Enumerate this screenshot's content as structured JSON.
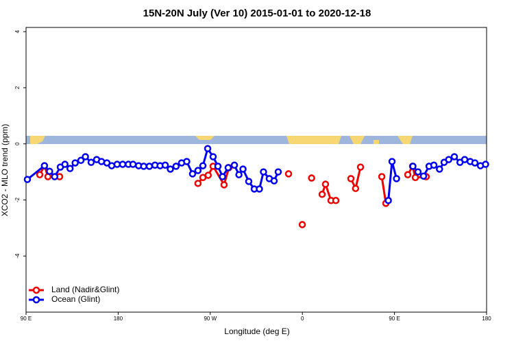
{
  "chart_data": {
    "type": "line",
    "title": "15N-20N July (Ver 10)   2015-01-01 to 2020-12-18",
    "x_label": "Longitude (deg E)",
    "y_label": "XCO2 - MLO trend (ppm)",
    "xlim": [
      90,
      540
    ],
    "ylim": [
      -6,
      4.15
    ],
    "xticks": [
      {
        "value": 90,
        "label": "90 E"
      },
      180,
      {
        "value": 270,
        "label": "90 W"
      },
      {
        "value": 360,
        "label": "0"
      },
      {
        "value": 450,
        "label": "90 E"
      },
      {
        "value": 540,
        "label": "180"
      }
    ],
    "yticks": [
      -4,
      -2,
      0,
      2,
      4
    ],
    "legend": "bottom-left",
    "series": [
      {
        "name": "Land (Nadir&Glint)",
        "color": "#ee0000",
        "x": [
          103.4,
          108,
          111.4,
          122.8,
          null,
          258,
          262.8,
          268,
          272.8,
          283.5,
          288.2,
          null,
          346.5,
          null,
          359.9,
          null,
          369,
          null,
          379.3,
          382.6,
          388,
          392.7,
          null,
          407.4,
          412,
          416.8,
          null,
          437.6,
          441.6,
          null,
          463,
          467.7,
          470.4,
          481
        ],
        "values": [
          -1.1,
          -0.78,
          -1.17,
          -1.17,
          null,
          -1.41,
          -1.2,
          -1.12,
          -0.8,
          -1.46,
          -0.85,
          null,
          -1.07,
          null,
          -2.88,
          null,
          -1.22,
          null,
          -1.8,
          -1.44,
          -2.02,
          -2.02,
          null,
          -1.24,
          -1.59,
          -0.83,
          null,
          -1.17,
          -2.12,
          null,
          -1.1,
          -0.8,
          -1.2,
          -1.17
        ]
      },
      {
        "name": "Ocean (Glint)",
        "color": "#0000ee",
        "x": [
          91.3,
          108,
          113,
          118,
          123.5,
          128,
          133,
          138,
          143.6,
          148,
          153.6,
          159,
          163.7,
          169,
          173.7,
          179,
          184.4,
          190,
          194.5,
          200,
          205,
          210.5,
          216,
          221,
          226,
          231,
          236.6,
          242,
          247,
          252.7,
          258,
          262.8,
          267.5,
          272.8,
          277.5,
          282,
          287.5,
          293.6,
          298,
          302,
          307.6,
          313,
          318,
          322,
          327.7,
          332.4,
          336.4,
          null,
          444,
          447.6,
          452,
          null,
          468,
          473,
          478.4,
          483.8,
          488.5,
          494,
          498.5,
          503,
          508.5,
          514,
          518.6,
          524,
          528.6,
          534,
          539
        ],
        "values": [
          -1.27,
          -0.78,
          -0.98,
          -1.17,
          -0.83,
          -0.73,
          -0.88,
          -0.68,
          -0.59,
          -0.46,
          -0.66,
          -0.56,
          -0.63,
          -0.68,
          -0.78,
          -0.73,
          -0.73,
          -0.73,
          -0.73,
          -0.78,
          -0.8,
          -0.8,
          -0.76,
          -0.78,
          -0.76,
          -0.9,
          -0.8,
          -0.68,
          -0.63,
          -1.07,
          -0.95,
          -0.78,
          -0.17,
          -0.46,
          -0.8,
          -1.17,
          -0.85,
          -0.76,
          -1.1,
          -0.9,
          -1.34,
          -1.61,
          -1.61,
          -1.0,
          -1.24,
          -1.32,
          -1.0,
          null,
          -2.02,
          -0.63,
          -1.24,
          null,
          -0.8,
          -1.0,
          -1.15,
          -0.8,
          -0.76,
          -0.9,
          -0.66,
          -0.56,
          -0.46,
          -0.66,
          -0.56,
          -0.63,
          -0.68,
          -0.78,
          -0.73
        ]
      }
    ]
  }
}
